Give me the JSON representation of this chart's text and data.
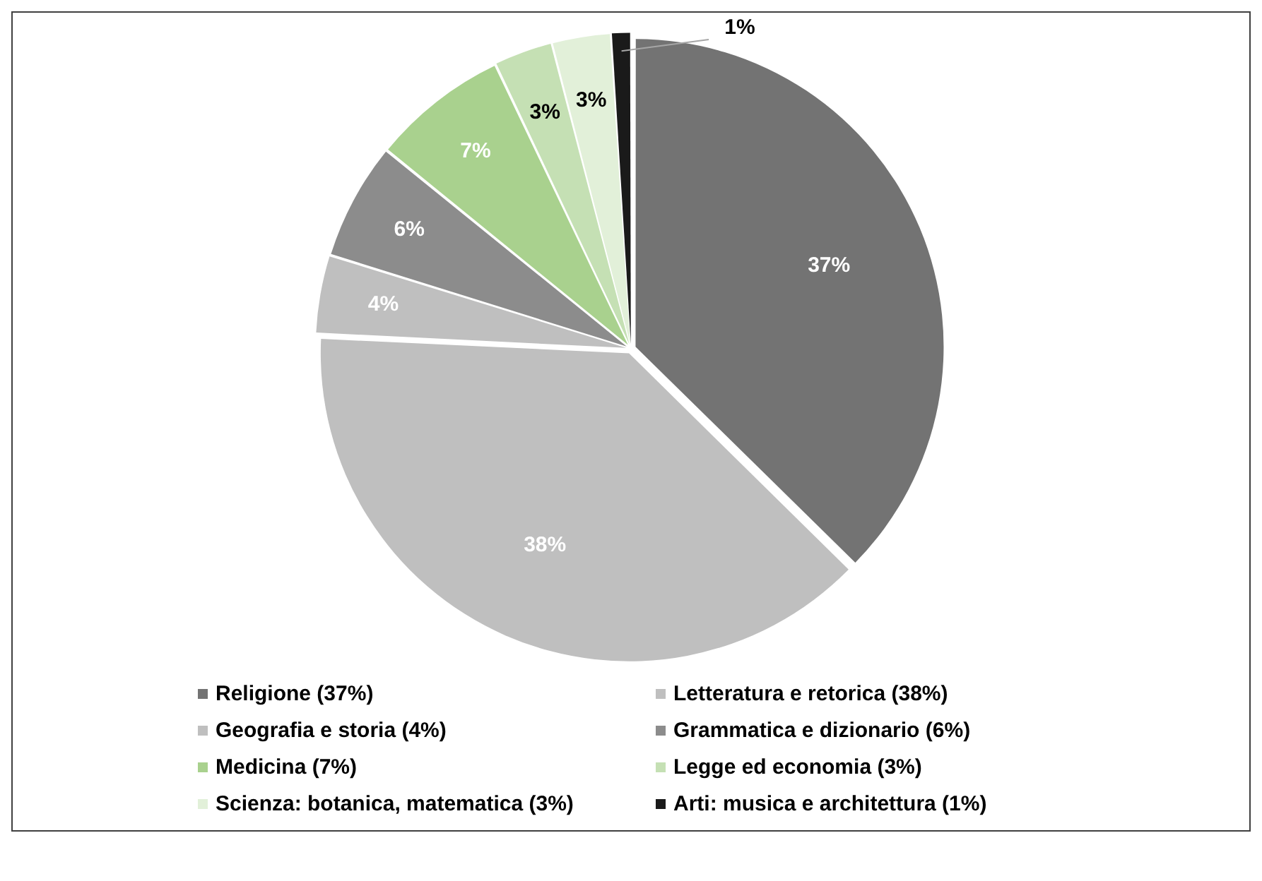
{
  "chart_data": {
    "type": "pie",
    "categories": [
      "Religione (37%)",
      "Letteratura e retorica (38%)",
      "Geografia e storia (4%)",
      "Grammatica e dizionario (6%)",
      "Medicina (7%)",
      "Legge ed economia (3%)",
      "Scienza: botanica, matematica (3%)",
      "Arti: musica e architettura (1%)"
    ],
    "values": [
      37,
      38,
      4,
      6,
      7,
      3,
      3,
      1
    ],
    "colors": [
      "#737373",
      "#bfbfbf",
      "#bfbfbf",
      "#8c8c8c",
      "#a9d18e",
      "#c5e0b4",
      "#e2f0d9",
      "#1a1a1a"
    ],
    "value_labels": [
      "37%",
      "38%",
      "4%",
      "6%",
      "7%",
      "3%",
      "3%",
      "1%"
    ],
    "legend": "bottom"
  }
}
